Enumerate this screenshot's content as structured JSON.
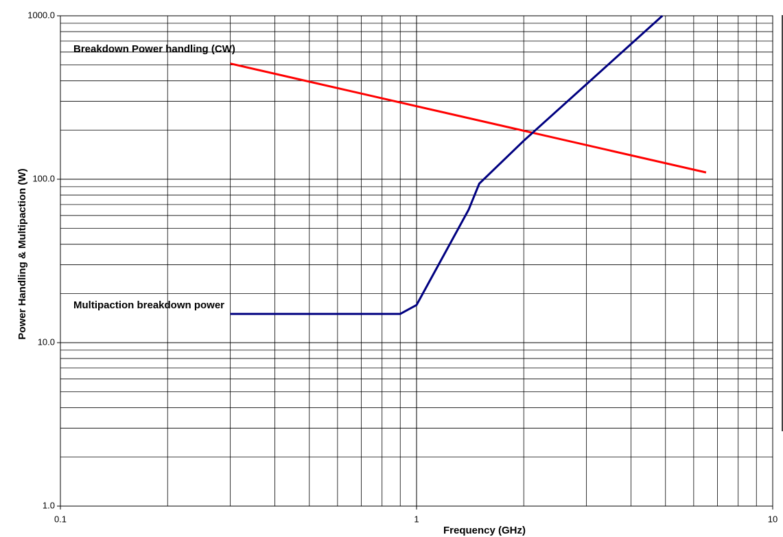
{
  "chart_data": {
    "type": "line",
    "x_label": "Frequency (GHz)",
    "y_label": "Power Handling & Multipaction (W)",
    "xscale": "log",
    "yscale": "log",
    "grid": true,
    "xlim": [
      0.1,
      10
    ],
    "ylim": [
      1,
      1000
    ],
    "xticks": [
      0.1,
      1,
      10
    ],
    "yticks": [
      {
        "value": 1,
        "label": "1.0"
      },
      {
        "value": 10,
        "label": "10.0"
      },
      {
        "value": 100,
        "label": "100.0"
      },
      {
        "value": 1000,
        "label": "1000.0"
      }
    ],
    "series": [
      {
        "name": "Breakdown Power handling (CW)",
        "color": "#ff0000",
        "x": [
          0.3,
          6.5
        ],
        "values": [
          510,
          110
        ]
      },
      {
        "name": "Multipaction breakdown power",
        "color": "#000080",
        "x": [
          0.3,
          0.9,
          1.0,
          1.4,
          1.5,
          2.0,
          4.9
        ],
        "values": [
          15,
          15,
          17,
          65,
          94,
          172,
          1000
        ]
      }
    ]
  }
}
